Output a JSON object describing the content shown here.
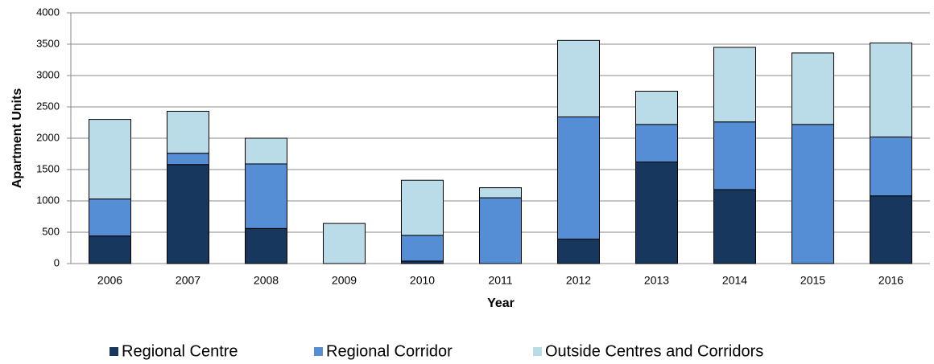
{
  "chart_data": {
    "type": "stacked_bar",
    "xlabel": "Year",
    "ylabel": "Apartment Units",
    "categories": [
      "2006",
      "2007",
      "2008",
      "2009",
      "2010",
      "2011",
      "2012",
      "2013",
      "2014",
      "2015",
      "2016"
    ],
    "series": [
      {
        "name": "Regional Centre",
        "color": "#17375e",
        "values": [
          440,
          1580,
          560,
          0,
          40,
          0,
          390,
          1620,
          1180,
          0,
          1080
        ]
      },
      {
        "name": "Regional Corridor",
        "color": "#558ed5",
        "values": [
          590,
          180,
          1030,
          0,
          410,
          1050,
          1950,
          600,
          1080,
          2220,
          940
        ]
      },
      {
        "name": "Outside Centres and Corridors",
        "color": "#b9dce8",
        "values": [
          1270,
          670,
          410,
          640,
          880,
          160,
          1220,
          530,
          1190,
          1140,
          1500
        ]
      }
    ],
    "ylim": [
      0,
      4000
    ],
    "yticks": [
      0,
      500,
      1000,
      1500,
      2000,
      2500,
      3000,
      3500,
      4000
    ],
    "grid": true,
    "legend": "bottom"
  }
}
